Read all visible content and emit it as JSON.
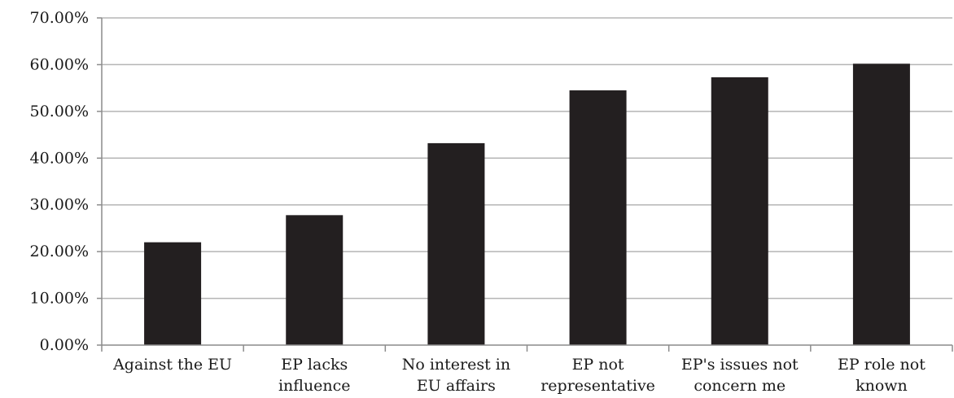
{
  "chart_data": {
    "type": "bar",
    "title": "",
    "xlabel": "",
    "ylabel": "",
    "categories": [
      [
        "Against the EU"
      ],
      [
        "EP lacks",
        "influence"
      ],
      [
        "No interest in",
        "EU affairs"
      ],
      [
        "EP not",
        "representative"
      ],
      [
        "EP's issues not",
        "concern me"
      ],
      [
        "EP role not",
        "known"
      ]
    ],
    "values": [
      22.0,
      27.8,
      43.2,
      54.5,
      57.3,
      60.2
    ],
    "ylim": [
      0,
      70
    ],
    "yticks": [
      "0.00%",
      "10.00%",
      "20.00%",
      "30.00%",
      "40.00%",
      "50.00%",
      "60.00%",
      "70.00%"
    ],
    "grid": true,
    "legend": "none",
    "bar_color": "#231f20",
    "grid_color": "#b5b5b5",
    "axis_color": "#8c8c8c"
  }
}
